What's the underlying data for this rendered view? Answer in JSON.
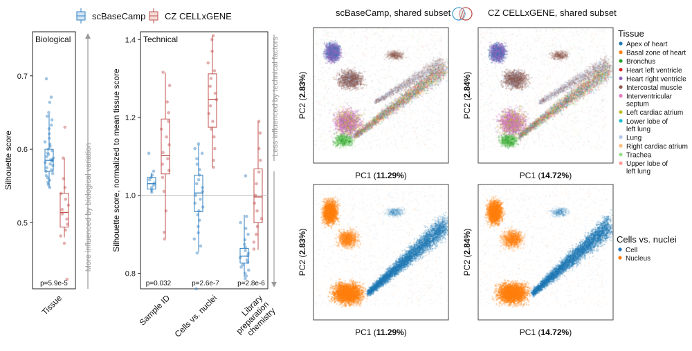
{
  "colors": {
    "scbasecamp": "#2f7fc1",
    "cellxgene": "#c0504d",
    "cell": "#1f77b4",
    "nucleus": "#ff7f0e",
    "arrow": "#9a9a9a"
  },
  "legend": {
    "scbasecamp": "scBaseCamp",
    "cellxgene": "CZ CELLxGENE"
  },
  "chart_data": [
    {
      "type": "box",
      "panel": "biological",
      "title": "Biological",
      "ylabel": "Silhouette score",
      "ylim": [
        0.41,
        0.76
      ],
      "yticks": [
        0.5,
        0.6,
        0.7
      ],
      "categories": [
        "Tissue"
      ],
      "pvalue": "p=5.9e-5",
      "side_label": "More influenced by biological variation",
      "series": [
        {
          "name": "scBaseCamp",
          "box": {
            "q1": 0.57,
            "median": 0.585,
            "q3": 0.6,
            "wlo": 0.548,
            "whi": 0.648
          },
          "points": [
            0.696,
            0.671,
            0.664,
            0.65,
            0.645,
            0.64,
            0.633,
            0.628,
            0.621,
            0.615,
            0.61,
            0.607,
            0.604,
            0.6,
            0.598,
            0.595,
            0.593,
            0.59,
            0.588,
            0.586,
            0.585,
            0.584,
            0.582,
            0.58,
            0.578,
            0.575,
            0.572,
            0.57,
            0.567,
            0.564,
            0.561,
            0.558,
            0.555,
            0.552,
            0.548
          ]
        },
        {
          "name": "CZ CELLxGENE",
          "box": {
            "q1": 0.494,
            "median": 0.514,
            "q3": 0.54,
            "wlo": 0.48,
            "whi": 0.588
          },
          "points": [
            0.63,
            0.588,
            0.56,
            0.548,
            0.54,
            0.532,
            0.524,
            0.518,
            0.512,
            0.505,
            0.498,
            0.49,
            0.482,
            0.472,
            0.423
          ]
        }
      ]
    },
    {
      "type": "box",
      "panel": "technical",
      "title": "Technical",
      "ylabel": "Silhouette score, normalized to mean tissue score",
      "ylim": [
        0.76,
        1.42
      ],
      "yticks": [
        0.8,
        1.0,
        1.2,
        1.4
      ],
      "reference_line": 1.0,
      "categories": [
        "Sample ID",
        "Cells vs. nuclei",
        "Library preparation chemistry"
      ],
      "category_lines": [
        [
          "Sample ID"
        ],
        [
          "Cells vs. nuclei"
        ],
        [
          "Library",
          "preparation",
          "chemistry"
        ]
      ],
      "pvalues": [
        "p=0.032",
        "p=2.6e-7",
        "p=2.8e-6"
      ],
      "side_label": "Less influenced by technical factors",
      "series": [
        {
          "name": "scBaseCamp",
          "boxes": [
            {
              "q1": 1.016,
              "median": 1.03,
              "q3": 1.046,
              "wlo": 1.008,
              "whi": 1.058,
              "points": [
                1.108,
                1.062,
                1.052,
                1.046,
                1.04,
                1.032,
                1.026,
                1.02,
                1.014,
                1.008
              ]
            },
            {
              "q1": 0.958,
              "median": 1.006,
              "q3": 1.052,
              "wlo": 0.855,
              "whi": 1.13,
              "points": [
                1.132,
                1.12,
                1.108,
                1.094,
                1.08,
                1.066,
                1.052,
                1.04,
                1.03,
                1.02,
                1.01,
                1.0,
                0.99,
                0.98,
                0.97,
                0.96,
                0.95,
                0.936,
                0.92,
                0.904,
                0.888,
                0.87,
                0.852,
                0.76
              ]
            },
            {
              "q1": 0.826,
              "median": 0.844,
              "q3": 0.864,
              "wlo": 0.79,
              "whi": 0.95,
              "points": [
                1.05,
                0.946,
                0.93,
                0.915,
                0.9,
                0.886,
                0.874,
                0.866,
                0.858,
                0.851,
                0.845,
                0.84,
                0.834,
                0.828,
                0.822,
                0.816,
                0.808,
                0.8,
                0.793,
                0.786
              ]
            }
          ]
        },
        {
          "name": "CZ CELLxGENE",
          "boxes": [
            {
              "q1": 1.055,
              "median": 1.102,
              "q3": 1.196,
              "wlo": 0.89,
              "whi": 1.315,
              "points": [
                1.316,
                1.282,
                1.24,
                1.212,
                1.19,
                1.17,
                1.15,
                1.13,
                1.11,
                1.094,
                1.08,
                1.064,
                1.046,
                1.01,
                0.96,
                0.905,
                0.888
              ]
            },
            {
              "q1": 1.175,
              "median": 1.246,
              "q3": 1.312,
              "wlo": 1.072,
              "whi": 1.41,
              "points": [
                1.41,
                1.4,
                1.37,
                1.34,
                1.32,
                1.3,
                1.28,
                1.262,
                1.246,
                1.23,
                1.21,
                1.19,
                1.17,
                1.15,
                1.12,
                1.09,
                1.072
              ]
            },
            {
              "q1": 0.93,
              "median": 0.996,
              "q3": 1.068,
              "wlo": 0.86,
              "whi": 1.19,
              "points": [
                1.19,
                1.16,
                1.12,
                1.09,
                1.06,
                1.03,
                1.0,
                0.98,
                0.96,
                0.94,
                0.92,
                0.9,
                0.88,
                0.862
              ]
            }
          ]
        }
      ]
    },
    {
      "type": "scatter",
      "panel": "pca",
      "column_titles": [
        "scBaseCamp, shared subset",
        "CZ CELLxGENE, shared subset"
      ],
      "axes": {
        "scbasecamp": {
          "xlabel": "PC1",
          "xpct": "11.29%",
          "ylabel": "PC2",
          "ypct": "2.83%"
        },
        "cellxgene": {
          "xlabel": "PC1",
          "xpct": "14.72%",
          "ylabel": "PC2",
          "ypct": "2.84%"
        }
      },
      "tissue_legend_title": "Tissue",
      "tissues": [
        {
          "lines": [
            "Apex of heart"
          ],
          "color": "#1f77b4"
        },
        {
          "lines": [
            "Basal zone of heart"
          ],
          "color": "#ff7f0e"
        },
        {
          "lines": [
            "Bronchus"
          ],
          "color": "#2ca02c"
        },
        {
          "lines": [
            "Heart left ventricle"
          ],
          "color": "#d62728"
        },
        {
          "lines": [
            "Heart right ventricle"
          ],
          "color": "#9467bd"
        },
        {
          "lines": [
            "Intercostal muscle"
          ],
          "color": "#8c564b"
        },
        {
          "lines": [
            "Interventricular",
            "septum"
          ],
          "color": "#e377c2"
        },
        {
          "lines": [
            "Left cardiac atrium"
          ],
          "color": "#bcbd22"
        },
        {
          "lines": [
            "Lower lobe of",
            "left lung"
          ],
          "color": "#17becf"
        },
        {
          "lines": [
            "Lung"
          ],
          "color": "#aec7e8"
        },
        {
          "lines": [
            "Right cardiac atrium"
          ],
          "color": "#ffbb78"
        },
        {
          "lines": [
            "Trachea"
          ],
          "color": "#98df8a"
        },
        {
          "lines": [
            "Upper lobe of",
            "left lung"
          ],
          "color": "#ff9896"
        }
      ],
      "cells_legend_title": "Cells vs. nuclei",
      "cells": [
        {
          "label": "Cell",
          "color": "#1f77b4"
        },
        {
          "label": "Nucleus",
          "color": "#ff7f0e"
        }
      ]
    }
  ]
}
